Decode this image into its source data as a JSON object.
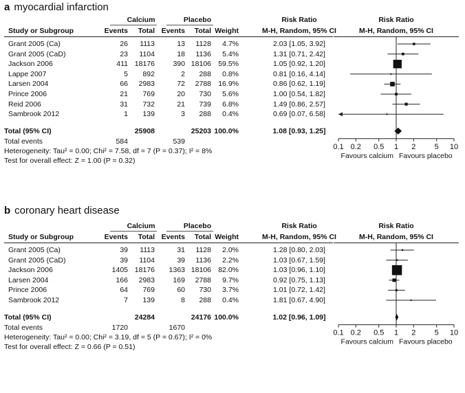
{
  "chart_data": [
    {
      "type": "forest",
      "panel_letter": "a",
      "title": "myocardial infarction",
      "headers": {
        "study": "Study or Subgroup",
        "calcium": "Calcium",
        "placebo": "Placebo",
        "events": "Events",
        "total": "Total",
        "weight": "Weight",
        "risk_ratio": "Risk Ratio",
        "method": "M-H, Random, 95% CI"
      },
      "studies": [
        {
          "name": "Grant 2005 (Ca)",
          "ce": "26",
          "ct": "1113",
          "pe": "13",
          "pt": "1128",
          "weight": "4.7%",
          "ci_text": "2.03 [1.05, 3.92]",
          "rr": 2.03,
          "lo": 1.05,
          "hi": 3.92,
          "w": 4.7
        },
        {
          "name": "Grant 2005 (CaD)",
          "ce": "23",
          "ct": "1104",
          "pe": "18",
          "pt": "1136",
          "weight": "5.4%",
          "ci_text": "1.31 [0.71, 2.42]",
          "rr": 1.31,
          "lo": 0.71,
          "hi": 2.42,
          "w": 5.4
        },
        {
          "name": "Jackson 2006",
          "ce": "411",
          "ct": "18176",
          "pe": "390",
          "pt": "18106",
          "weight": "59.5%",
          "ci_text": "1.05 [0.92, 1.20]",
          "rr": 1.05,
          "lo": 0.92,
          "hi": 1.2,
          "w": 59.5
        },
        {
          "name": "Lappe 2007",
          "ce": "5",
          "ct": "892",
          "pe": "2",
          "pt": "288",
          "weight": "0.8%",
          "ci_text": "0.81 [0.16, 4.14]",
          "rr": 0.81,
          "lo": 0.16,
          "hi": 4.14,
          "w": 0.8
        },
        {
          "name": "Larsen 2004",
          "ce": "66",
          "ct": "2983",
          "pe": "72",
          "pt": "2788",
          "weight": "16.9%",
          "ci_text": "0.86 [0.62, 1.19]",
          "rr": 0.86,
          "lo": 0.62,
          "hi": 1.19,
          "w": 16.9
        },
        {
          "name": "Prince 2006",
          "ce": "21",
          "ct": "769",
          "pe": "20",
          "pt": "730",
          "weight": "5.6%",
          "ci_text": "1.00 [0.54, 1.82]",
          "rr": 1.0,
          "lo": 0.54,
          "hi": 1.82,
          "w": 5.6
        },
        {
          "name": "Reid 2006",
          "ce": "31",
          "ct": "732",
          "pe": "21",
          "pt": "739",
          "weight": "6.8%",
          "ci_text": "1.49 [0.86, 2.57]",
          "rr": 1.49,
          "lo": 0.86,
          "hi": 2.57,
          "w": 6.8
        },
        {
          "name": "Sambrook 2012",
          "ce": "1",
          "ct": "139",
          "pe": "3",
          "pt": "288",
          "weight": "0.4%",
          "ci_text": "0.69 [0.07, 6.58]",
          "rr": 0.69,
          "lo": 0.07,
          "hi": 6.58,
          "w": 0.4
        }
      ],
      "total": {
        "label": "Total (95% CI)",
        "ct": "25908",
        "pt": "25203",
        "weight": "100.0%",
        "ci_text": "1.08 [0.93, 1.25]",
        "rr": 1.08,
        "lo": 0.93,
        "hi": 1.25
      },
      "total_events": {
        "label": "Total events",
        "ce": "584",
        "pe": "539"
      },
      "heterogeneity": "Heterogeneity: Tau² = 0.00; Chi² = 7.58, df = 7 (P = 0.37); I² = 8%",
      "overall_effect": "Test for overall effect: Z = 1.00 (P = 0.32)",
      "axis": {
        "scale": "log",
        "xlim": [
          0.1,
          10
        ],
        "ticks": [
          "0.1",
          "0.2",
          "0.5",
          "1",
          "2",
          "5",
          "10"
        ],
        "tick_values": [
          0.1,
          0.2,
          0.5,
          1,
          2,
          5,
          10
        ]
      },
      "favours_left": "Favours calcium",
      "favours_right": "Favours placebo"
    },
    {
      "type": "forest",
      "panel_letter": "b",
      "title": "coronary heart disease",
      "headers": {
        "study": "Study or Subgroup",
        "calcium": "Calcium",
        "placebo": "Placebo",
        "events": "Events",
        "total": "Total",
        "weight": "Weight",
        "risk_ratio": "Risk Ratio",
        "method": "M-H, Random, 95% CI"
      },
      "studies": [
        {
          "name": "Grant 2005 (Ca)",
          "ce": "39",
          "ct": "1113",
          "pe": "31",
          "pt": "1128",
          "weight": "2.0%",
          "ci_text": "1.28 [0.80, 2.03]",
          "rr": 1.28,
          "lo": 0.8,
          "hi": 2.03,
          "w": 2.0
        },
        {
          "name": "Grant 2005 (CaD)",
          "ce": "39",
          "ct": "1104",
          "pe": "39",
          "pt": "1136",
          "weight": "2.2%",
          "ci_text": "1.03 [0.67, 1.59]",
          "rr": 1.03,
          "lo": 0.67,
          "hi": 1.59,
          "w": 2.2
        },
        {
          "name": "Jackson 2006",
          "ce": "1405",
          "ct": "18176",
          "pe": "1363",
          "pt": "18106",
          "weight": "82.0%",
          "ci_text": "1.03 [0.96, 1.10]",
          "rr": 1.03,
          "lo": 0.96,
          "hi": 1.1,
          "w": 82.0
        },
        {
          "name": "Larsen 2004",
          "ce": "166",
          "ct": "2983",
          "pe": "169",
          "pt": "2788",
          "weight": "9.7%",
          "ci_text": "0.92 [0.75, 1.13]",
          "rr": 0.92,
          "lo": 0.75,
          "hi": 1.13,
          "w": 9.7
        },
        {
          "name": "Prince 2006",
          "ce": "64",
          "ct": "769",
          "pe": "60",
          "pt": "730",
          "weight": "3.7%",
          "ci_text": "1.01 [0.72, 1.42]",
          "rr": 1.01,
          "lo": 0.72,
          "hi": 1.42,
          "w": 3.7
        },
        {
          "name": "Sambrook 2012",
          "ce": "7",
          "ct": "139",
          "pe": "8",
          "pt": "288",
          "weight": "0.4%",
          "ci_text": "1.81 [0.67, 4.90]",
          "rr": 1.81,
          "lo": 0.67,
          "hi": 4.9,
          "w": 0.4
        }
      ],
      "total": {
        "label": "Total (95% CI)",
        "ct": "24284",
        "pt": "24176",
        "weight": "100.0%",
        "ci_text": "1.02 [0.96, 1.09]",
        "rr": 1.02,
        "lo": 0.96,
        "hi": 1.09
      },
      "total_events": {
        "label": "Total events",
        "ce": "1720",
        "pe": "1670"
      },
      "heterogeneity": "Heterogeneity: Tau² = 0.00; Chi² = 3.19, df = 5 (P = 0.67); I² = 0%",
      "overall_effect": "Test for overall effect: Z = 0.66 (P = 0.51)",
      "axis": {
        "scale": "log",
        "xlim": [
          0.1,
          10
        ],
        "ticks": [
          "0.1",
          "0.2",
          "0.5",
          "1",
          "2",
          "5",
          "10"
        ],
        "tick_values": [
          0.1,
          0.2,
          0.5,
          1,
          2,
          5,
          10
        ]
      },
      "favours_left": "Favours calcium",
      "favours_right": "Favours placebo"
    }
  ]
}
